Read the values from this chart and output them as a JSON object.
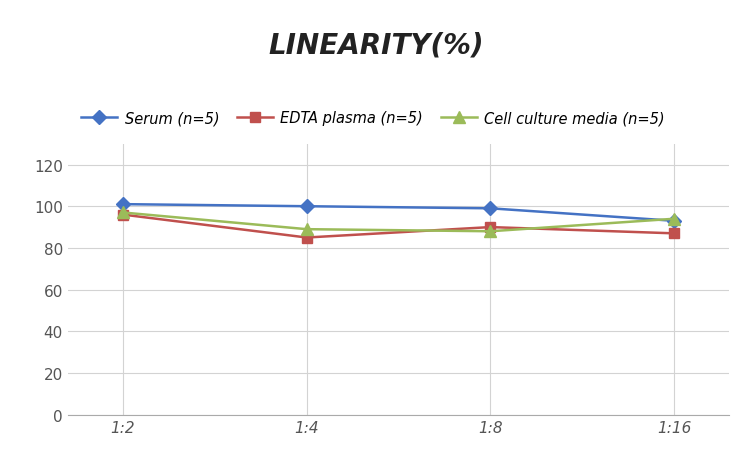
{
  "title": "LINEARITY(%)",
  "x_labels": [
    "1:2",
    "1:4",
    "1:8",
    "1:16"
  ],
  "x_positions": [
    0,
    1,
    2,
    3
  ],
  "series": [
    {
      "label": "Serum (n=5)",
      "values": [
        101,
        100,
        99,
        93
      ],
      "color": "#4472C4",
      "marker": "D",
      "markersize": 7,
      "linewidth": 1.8
    },
    {
      "label": "EDTA plasma (n=5)",
      "values": [
        96,
        85,
        90,
        87
      ],
      "color": "#C0504D",
      "marker": "s",
      "markersize": 7,
      "linewidth": 1.8
    },
    {
      "label": "Cell culture media (n=5)",
      "values": [
        97,
        89,
        88,
        94
      ],
      "color": "#9BBB59",
      "marker": "^",
      "markersize": 8,
      "linewidth": 1.8
    }
  ],
  "ylim": [
    0,
    130
  ],
  "yticks": [
    0,
    20,
    40,
    60,
    80,
    100,
    120
  ],
  "title_fontsize": 20,
  "legend_fontsize": 10.5,
  "tick_fontsize": 11,
  "background_color": "#ffffff",
  "grid_color": "#d3d3d3"
}
